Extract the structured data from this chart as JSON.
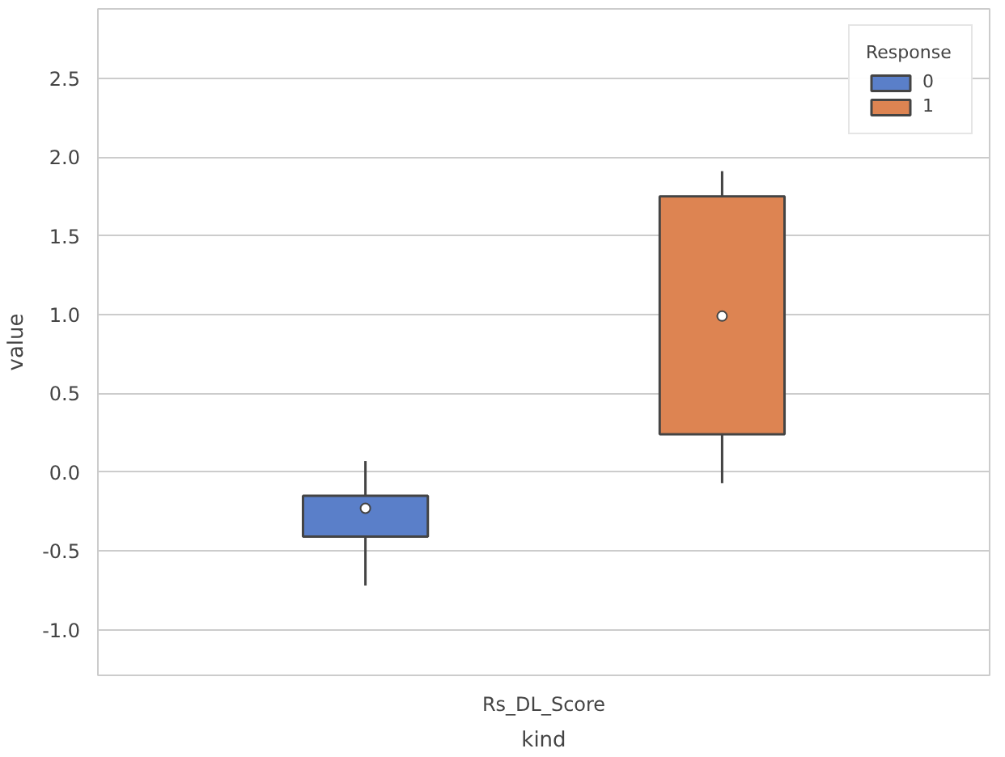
{
  "chart_data": {
    "type": "box",
    "xlabel": "kind",
    "ylabel": "value",
    "legend_title": "Response",
    "categories": [
      "Rs_DL_Score"
    ],
    "series": [
      {
        "name": "0",
        "color": "#5a7fc9",
        "boxes": [
          {
            "low": -0.72,
            "q1": -0.41,
            "median": -0.23,
            "q3": -0.15,
            "high": 0.07
          }
        ]
      },
      {
        "name": "1",
        "color": "#dd8452",
        "boxes": [
          {
            "low": -0.07,
            "q1": 0.24,
            "median": 0.99,
            "q3": 1.75,
            "high": 1.91
          }
        ]
      }
    ],
    "ylim": [
      -1.29,
      2.94
    ],
    "yticks": [
      {
        "value": -1.0,
        "label": "-1.0"
      },
      {
        "value": -0.5,
        "label": "-0.5"
      },
      {
        "value": 0.0,
        "label": "0.0"
      },
      {
        "value": 0.5,
        "label": "0.5"
      },
      {
        "value": 1.0,
        "label": "1.0"
      },
      {
        "value": 1.5,
        "label": "1.5"
      },
      {
        "value": 2.0,
        "label": "2.0"
      },
      {
        "value": 2.5,
        "label": "2.5"
      }
    ],
    "grid": "y",
    "legend": "top right"
  }
}
